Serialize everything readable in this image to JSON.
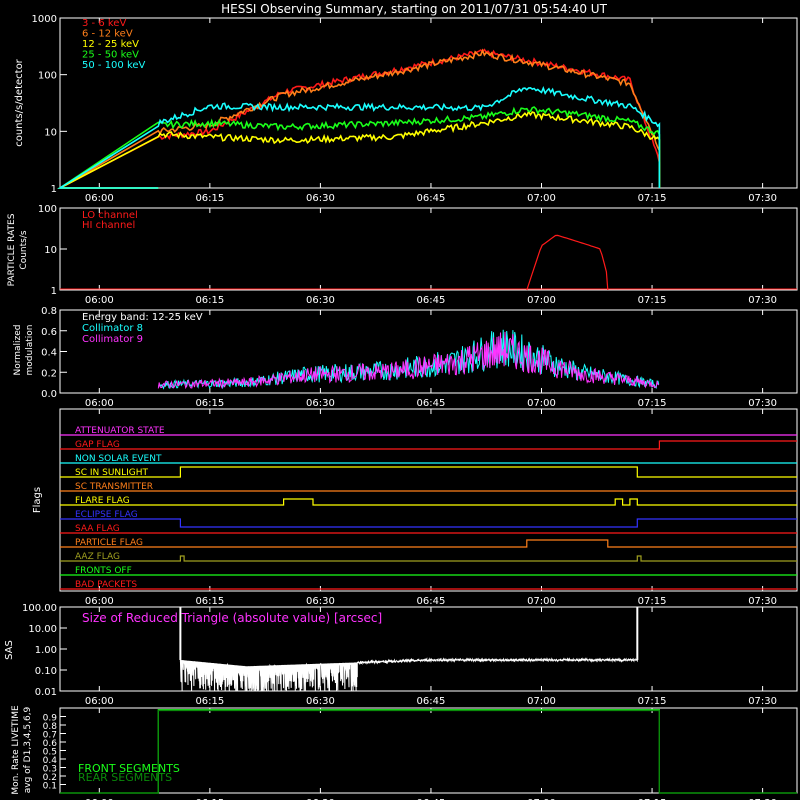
{
  "title": "HESSI Observing Summary, starting on 2011/07/31 05:54:40 UT",
  "x_ticks": [
    "06:00",
    "06:15",
    "06:30",
    "06:45",
    "07:00",
    "07:15",
    "07:30"
  ],
  "panels": {
    "rates": {
      "ylabel": "counts/s/detector",
      "y_ticks": [
        "1",
        "10",
        "100",
        "1000"
      ],
      "legend": [
        {
          "label": "3 - 6 keV",
          "color": "#ff1a1a"
        },
        {
          "label": "6 - 12 keV",
          "color": "#ff7f1a"
        },
        {
          "label": "12 - 25 keV",
          "color": "#ffff00"
        },
        {
          "label": "25 - 50 keV",
          "color": "#1aff1a"
        },
        {
          "label": "50 - 100 keV",
          "color": "#1affff"
        }
      ]
    },
    "particle": {
      "ylabel_1": "PARTICLE RATES",
      "ylabel_2": "Counts/s",
      "y_ticks": [
        "1",
        "10",
        "100"
      ],
      "legend": [
        {
          "label": "LO channel",
          "color": "#ff1a1a"
        },
        {
          "label": "HI channel",
          "color": "#ff1a1a"
        }
      ]
    },
    "modulation": {
      "ylabel_1": "Normalized",
      "ylabel_2": "modulation",
      "y_ticks": [
        "0.0",
        "0.2",
        "0.4",
        "0.6",
        "0.8"
      ],
      "legend": [
        {
          "label": "Energy band: 12-25 keV",
          "color": "#ffffff"
        },
        {
          "label": "Collimator 8",
          "color": "#1affff"
        },
        {
          "label": "Collimator 9",
          "color": "#ff33ff"
        }
      ]
    },
    "flags": {
      "ylabel": "Flags",
      "items": [
        {
          "label": "ATTENUATOR STATE",
          "color": "#ff33ff"
        },
        {
          "label": "GAP FLAG",
          "color": "#ff1a1a"
        },
        {
          "label": "NON SOLAR EVENT",
          "color": "#1affff"
        },
        {
          "label": "SC IN SUNLIGHT",
          "color": "#ffff00"
        },
        {
          "label": "SC TRANSMITTER",
          "color": "#ff7f1a"
        },
        {
          "label": "FLARE FLAG",
          "color": "#ffff00"
        },
        {
          "label": "ECLIPSE FLAG",
          "color": "#3333ff"
        },
        {
          "label": "SAA FLAG",
          "color": "#ff1a1a"
        },
        {
          "label": "PARTICLE FLAG",
          "color": "#ff7f1a"
        },
        {
          "label": "AAZ FLAG",
          "color": "#a0a020"
        },
        {
          "label": "FRONTS OFF",
          "color": "#1aff1a"
        },
        {
          "label": "BAD PACKETS",
          "color": "#ff1a1a"
        }
      ]
    },
    "sas": {
      "ylabel": "SAS",
      "label": "Size of Reduced Triangle (absolute value) [arcsec]",
      "label_color": "#ff33ff",
      "y_ticks": [
        "0.01",
        "0.10",
        "1.00",
        "10.00",
        "100.00"
      ]
    },
    "livetime": {
      "ylabel_1": "Mon. Rate LIVETIME",
      "ylabel_2": "avg of D1,3,4,5,6,9",
      "y_ticks": [
        "0.1",
        "0.2",
        "0.3",
        "0.4",
        "0.5",
        "0.6",
        "0.7",
        "0.8",
        "0.9"
      ],
      "legend": [
        {
          "label": "FRONT SEGMENTS",
          "color": "#1aff1a"
        },
        {
          "label": "REAR SEGMENTS",
          "color": "#0a8a0a"
        }
      ]
    }
  },
  "chart_data": [
    {
      "type": "line",
      "title": "HESSI Observing Summary, starting on 2011/07/31 05:54:40 UT",
      "ylabel": "counts/s/detector",
      "yscale": "log",
      "ylim": [
        1,
        1000
      ],
      "x": [
        "06:08",
        "06:15",
        "06:25",
        "06:40",
        "06:52",
        "06:58",
        "07:05",
        "07:12",
        "07:16"
      ],
      "series": [
        {
          "name": "3 - 6 keV",
          "values": [
            8,
            10,
            50,
            120,
            250,
            180,
            120,
            80,
            3
          ]
        },
        {
          "name": "6 - 12 keV",
          "values": [
            10,
            13,
            45,
            110,
            240,
            170,
            110,
            70,
            5
          ]
        },
        {
          "name": "12 - 25 keV",
          "values": [
            9,
            8,
            7,
            8,
            14,
            20,
            16,
            12,
            7
          ]
        },
        {
          "name": "25 - 50 keV",
          "values": [
            13,
            14,
            12,
            14,
            18,
            25,
            20,
            15,
            9
          ]
        },
        {
          "name": "50 - 100 keV",
          "values": [
            14,
            28,
            27,
            27,
            26,
            60,
            40,
            28,
            13
          ]
        }
      ]
    },
    {
      "type": "line",
      "ylabel": "Counts/s",
      "yscale": "log",
      "ylim": [
        1,
        100
      ],
      "x": [
        "06:58",
        "07:00",
        "07:02",
        "07:05",
        "07:08",
        "07:09"
      ],
      "series": [
        {
          "name": "HI channel",
          "values": [
            1,
            12,
            22,
            15,
            10,
            2
          ]
        }
      ]
    },
    {
      "type": "line",
      "ylabel": "Normalized modulation",
      "ylim": [
        0,
        0.8
      ],
      "x": [
        "06:08",
        "06:20",
        "06:28",
        "06:40",
        "06:48",
        "06:55",
        "07:05",
        "07:16"
      ],
      "series": [
        {
          "name": "Collimator 8",
          "values": [
            0.08,
            0.1,
            0.18,
            0.22,
            0.3,
            0.45,
            0.2,
            0.08
          ]
        },
        {
          "name": "Collimator 9",
          "values": [
            0.08,
            0.1,
            0.17,
            0.21,
            0.29,
            0.42,
            0.19,
            0.08
          ]
        }
      ]
    },
    {
      "type": "line",
      "ylabel": "SAS",
      "yscale": "log",
      "ylim": [
        0.01,
        100
      ],
      "x": [
        "06:11",
        "06:20",
        "06:30",
        "06:45",
        "07:00",
        "07:13"
      ],
      "series": [
        {
          "values": [
            0.3,
            0.15,
            0.2,
            0.3,
            0.3,
            0.3
          ]
        }
      ]
    },
    {
      "type": "line",
      "ylabel": "Mon. Rate LIVETIME avg of D1,3,4,5,6,9",
      "ylim": [
        0,
        1
      ],
      "x": [
        "06:08",
        "07:16"
      ],
      "series": [
        {
          "name": "FRONT SEGMENTS",
          "values": [
            0.98,
            0.98
          ]
        },
        {
          "name": "REAR SEGMENTS",
          "values": [
            0.97,
            0.97
          ]
        }
      ]
    }
  ]
}
